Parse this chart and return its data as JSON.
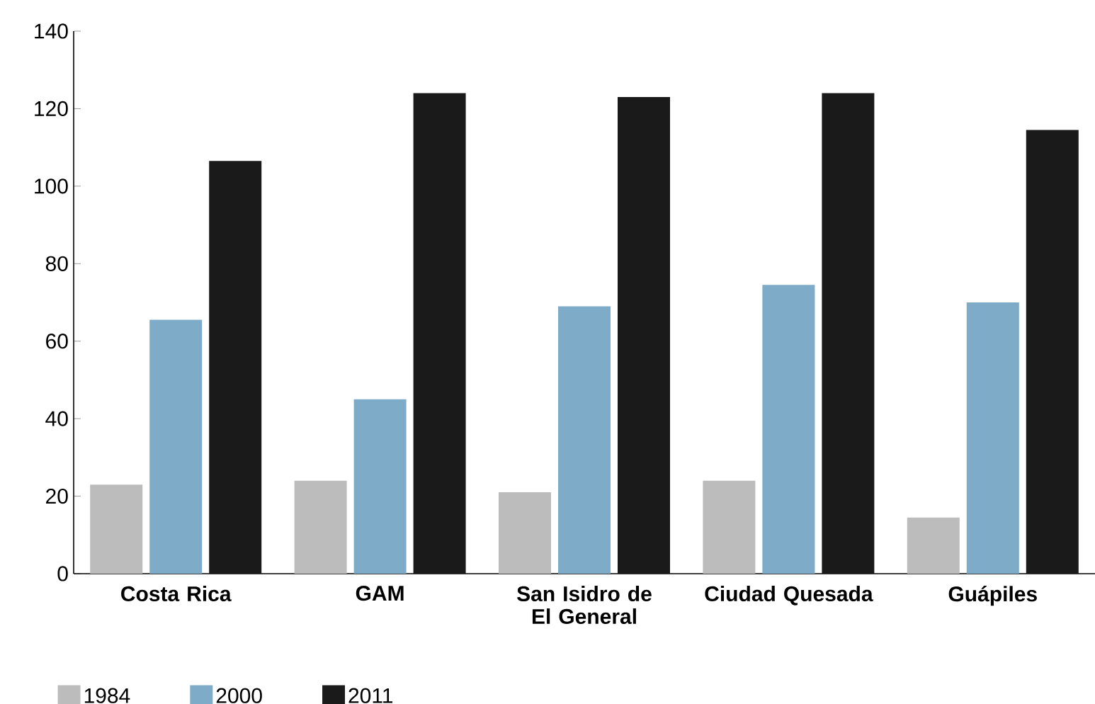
{
  "chart_data": {
    "type": "bar",
    "categories": [
      "Costa Rica",
      "GAM",
      "San Isidro de El General",
      "Ciudad Quesada",
      "Guápiles"
    ],
    "series": [
      {
        "name": "1984",
        "color": "#bcbcbc",
        "values": [
          23,
          24,
          21,
          24,
          14.5
        ]
      },
      {
        "name": "2000",
        "color": "#7eabc8",
        "values": [
          65.5,
          45,
          69,
          74.5,
          70
        ]
      },
      {
        "name": "2011",
        "color": "#1a1a1a",
        "values": [
          106.5,
          124,
          123,
          124,
          114.5
        ]
      }
    ],
    "ylim": [
      0,
      140
    ],
    "yticks": [
      0,
      20,
      40,
      60,
      80,
      100,
      120,
      140
    ],
    "grid": false,
    "legend": "bottom left"
  }
}
